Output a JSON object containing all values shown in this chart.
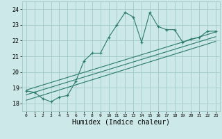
{
  "xlabel": "Humidex (Indice chaleur)",
  "ylabel": "",
  "xlim": [
    -0.5,
    23.5
  ],
  "ylim": [
    17.5,
    24.5
  ],
  "xticks": [
    0,
    1,
    2,
    3,
    4,
    5,
    6,
    7,
    8,
    9,
    10,
    11,
    12,
    13,
    14,
    15,
    16,
    17,
    18,
    19,
    20,
    21,
    22,
    23
  ],
  "yticks": [
    18,
    19,
    20,
    21,
    22,
    23,
    24
  ],
  "bg_color": "#cce8e8",
  "grid_color": "#a0c8c8",
  "line_color": "#2a7a6a",
  "series1_x": [
    0,
    1,
    2,
    3,
    4,
    5,
    6,
    7,
    8,
    9,
    10,
    11,
    12,
    13,
    14,
    15,
    16,
    17,
    18,
    19,
    20,
    21,
    22,
    23
  ],
  "series1_y": [
    18.8,
    18.7,
    18.3,
    18.1,
    18.4,
    18.5,
    19.4,
    20.7,
    21.2,
    21.2,
    22.2,
    23.0,
    23.8,
    23.5,
    21.9,
    23.8,
    22.9,
    22.7,
    22.7,
    21.9,
    22.1,
    22.2,
    22.6,
    22.6
  ],
  "series2_x": [
    0,
    23
  ],
  "series2_y": [
    18.85,
    22.55
  ],
  "series3_x": [
    0,
    23
  ],
  "series3_y": [
    18.55,
    22.25
  ],
  "series4_x": [
    0,
    23
  ],
  "series4_y": [
    18.2,
    21.95
  ]
}
